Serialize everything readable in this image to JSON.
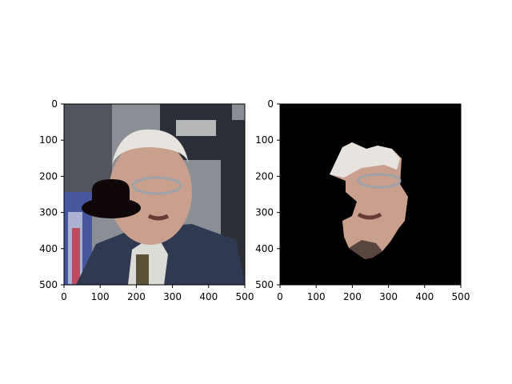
{
  "figure": {
    "subplots": [
      {
        "name": "left-subplot",
        "content": "photo with black hat occlusion",
        "xlim": [
          0,
          500
        ],
        "ylim": [
          500,
          0
        ],
        "xticks": [
          "0",
          "100",
          "200",
          "300",
          "400",
          "500"
        ],
        "yticks": [
          "0",
          "100",
          "200",
          "300",
          "400",
          "500"
        ]
      },
      {
        "name": "right-subplot",
        "content": "segmented face mask on black background",
        "xlim": [
          0,
          500
        ],
        "ylim": [
          500,
          0
        ],
        "xticks": [
          "0",
          "100",
          "200",
          "300",
          "400",
          "500"
        ],
        "yticks": [
          "0",
          "100",
          "200",
          "300",
          "400",
          "500"
        ]
      }
    ]
  },
  "colors": {
    "axes_background_black": "#000000",
    "hat": "#100808",
    "suit": "#2f3a52",
    "skin": "#c9a08d",
    "hair": "#e7e3de"
  },
  "icons": {
    "left": "photo-icon",
    "right": "mask-icon"
  }
}
